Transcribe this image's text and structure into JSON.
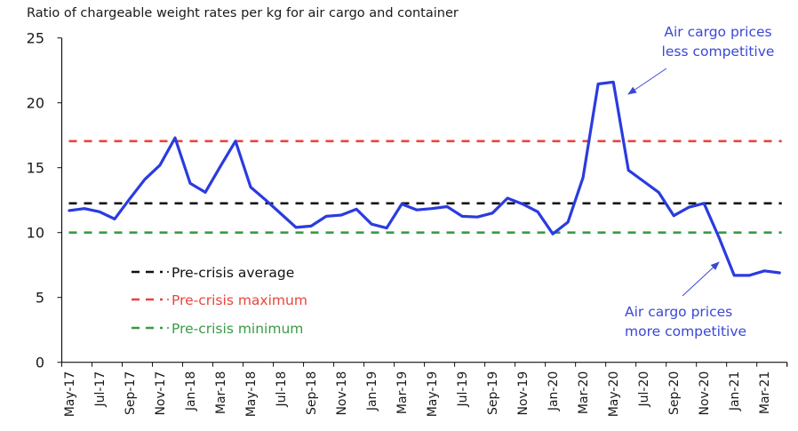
{
  "chart_data": {
    "type": "line",
    "title": "Ratio of chargeable weight rates per kg for air cargo and container",
    "xlabel": "",
    "ylabel": "",
    "ylim": [
      0,
      25
    ],
    "yticks": [
      0,
      5,
      10,
      15,
      20,
      25
    ],
    "grid": false,
    "categories": [
      "May-17",
      "Jun-17",
      "Jul-17",
      "Aug-17",
      "Sep-17",
      "Oct-17",
      "Nov-17",
      "Dec-17",
      "Jan-18",
      "Feb-18",
      "Mar-18",
      "Apr-18",
      "May-18",
      "Jun-18",
      "Jul-18",
      "Aug-18",
      "Sep-18",
      "Oct-18",
      "Nov-18",
      "Dec-18",
      "Jan-19",
      "Feb-19",
      "Mar-19",
      "Apr-19",
      "May-19",
      "Jun-19",
      "Jul-19",
      "Aug-19",
      "Sep-19",
      "Oct-19",
      "Nov-19",
      "Dec-19",
      "Jan-20",
      "Feb-20",
      "Mar-20",
      "Apr-20",
      "May-20",
      "Jun-20",
      "Jul-20",
      "Aug-20",
      "Sep-20",
      "Oct-20",
      "Nov-20",
      "Dec-20",
      "Jan-21",
      "Feb-21",
      "Mar-21",
      "Apr-21"
    ],
    "xtick_labels": [
      "May-17",
      "Jul-17",
      "Sep-17",
      "Nov-17",
      "Jan-18",
      "Mar-18",
      "May-18",
      "Jul-18",
      "Sep-18",
      "Nov-18",
      "Jan-19",
      "Mar-19",
      "May-19",
      "Jul-19",
      "Sep-19",
      "Nov-19",
      "Jan-20",
      "Mar-20",
      "May-20",
      "Jul-20",
      "Sep-20",
      "Nov-20",
      "Jan-21",
      "Mar-21"
    ],
    "series": [
      {
        "name": "Air cargo / container ratio",
        "color": "#2b3be0",
        "values": [
          11.7,
          11.85,
          11.6,
          11.05,
          12.6,
          14.1,
          15.2,
          17.3,
          13.8,
          13.1,
          15.1,
          17.05,
          13.5,
          12.5,
          11.45,
          10.4,
          10.5,
          11.25,
          11.35,
          11.8,
          10.65,
          10.35,
          12.2,
          11.75,
          11.85,
          12.0,
          11.25,
          11.2,
          11.5,
          12.65,
          12.2,
          11.6,
          9.9,
          10.8,
          14.25,
          21.45,
          21.6,
          14.8,
          13.95,
          13.1,
          11.3,
          11.95,
          12.25,
          9.6,
          6.7,
          6.7,
          7.05,
          6.9
        ]
      }
    ],
    "reference_lines": [
      {
        "name": "Pre-crisis average",
        "value": 12.25,
        "color": "#111111",
        "style": "dashed"
      },
      {
        "name": "Pre-crisis maximum",
        "value": 17.05,
        "color": "#e8453c",
        "style": "dashed"
      },
      {
        "name": "Pre-crisis minimum",
        "value": 10.0,
        "color": "#3a9a45",
        "style": "dashed"
      }
    ],
    "legend": {
      "placement": "bottom-left",
      "entries": [
        {
          "label": "Pre-crisis average",
          "color": "#111111"
        },
        {
          "label": "Pre-crisis maximum",
          "color": "#e8453c"
        },
        {
          "label": "Pre-crisis minimum",
          "color": "#3a9a45"
        }
      ]
    },
    "annotations": [
      {
        "lines": [
          "Air cargo prices",
          "less competitive"
        ],
        "points_to": "May-20",
        "color": "#3b48d6",
        "placement": "top-right"
      },
      {
        "lines": [
          "Air cargo prices",
          "more competitive"
        ],
        "points_to": "Dec-20",
        "color": "#3b48d6",
        "placement": "bottom-right"
      }
    ]
  }
}
